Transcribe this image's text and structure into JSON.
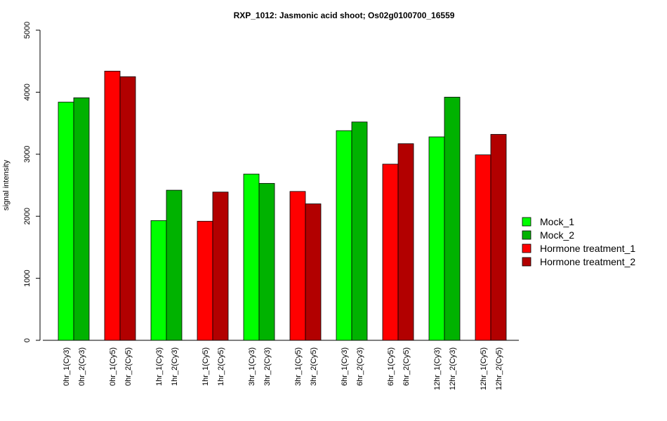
{
  "chart_data": {
    "type": "bar",
    "title": "RXP_1012: Jasmonic acid shoot; Os02g0100700_16559",
    "xlabel": "",
    "ylabel": "signal intensity",
    "ylim": [
      0,
      5000
    ],
    "yticks": [
      0,
      1000,
      2000,
      3000,
      4000,
      5000
    ],
    "grid": false,
    "legend_position": "right",
    "legend": [
      {
        "name": "Mock_1",
        "color": "#00ff00"
      },
      {
        "name": "Mock_2",
        "color": "#00b200"
      },
      {
        "name": "Hormone treatment_1",
        "color": "#ff0000"
      },
      {
        "name": "Hormone treatment_2",
        "color": "#b20000"
      }
    ],
    "groups": [
      {
        "bars": [
          {
            "label": "0hr_1(Cy3)",
            "value": 3840,
            "color": "#00ff00"
          },
          {
            "label": "0hr_2(Cy3)",
            "value": 3910,
            "color": "#00b200"
          }
        ]
      },
      {
        "bars": [
          {
            "label": "0hr_1(Cy5)",
            "value": 4340,
            "color": "#ff0000"
          },
          {
            "label": "0hr_2(Cy5)",
            "value": 4250,
            "color": "#b20000"
          }
        ]
      },
      {
        "bars": [
          {
            "label": "1hr_1(Cy3)",
            "value": 1930,
            "color": "#00ff00"
          },
          {
            "label": "1hr_2(Cy3)",
            "value": 2420,
            "color": "#00b200"
          }
        ]
      },
      {
        "bars": [
          {
            "label": "1hr_1(Cy5)",
            "value": 1920,
            "color": "#ff0000"
          },
          {
            "label": "1hr_2(Cy5)",
            "value": 2390,
            "color": "#b20000"
          }
        ]
      },
      {
        "bars": [
          {
            "label": "3hr_1(Cy3)",
            "value": 2680,
            "color": "#00ff00"
          },
          {
            "label": "3hr_2(Cy3)",
            "value": 2530,
            "color": "#00b200"
          }
        ]
      },
      {
        "bars": [
          {
            "label": "3hr_1(Cy5)",
            "value": 2400,
            "color": "#ff0000"
          },
          {
            "label": "3hr_2(Cy5)",
            "value": 2200,
            "color": "#b20000"
          }
        ]
      },
      {
        "bars": [
          {
            "label": "6hr_1(Cy3)",
            "value": 3380,
            "color": "#00ff00"
          },
          {
            "label": "6hr_2(Cy3)",
            "value": 3520,
            "color": "#00b200"
          }
        ]
      },
      {
        "bars": [
          {
            "label": "6hr_1(Cy5)",
            "value": 2840,
            "color": "#ff0000"
          },
          {
            "label": "6hr_2(Cy5)",
            "value": 3170,
            "color": "#b20000"
          }
        ]
      },
      {
        "bars": [
          {
            "label": "12hr_1(Cy3)",
            "value": 3280,
            "color": "#00ff00"
          },
          {
            "label": "12hr_2(Cy3)",
            "value": 3920,
            "color": "#00b200"
          }
        ]
      },
      {
        "bars": [
          {
            "label": "12hr_1(Cy5)",
            "value": 2990,
            "color": "#ff0000"
          },
          {
            "label": "12hr_2(Cy5)",
            "value": 3320,
            "color": "#b20000"
          }
        ]
      }
    ]
  }
}
